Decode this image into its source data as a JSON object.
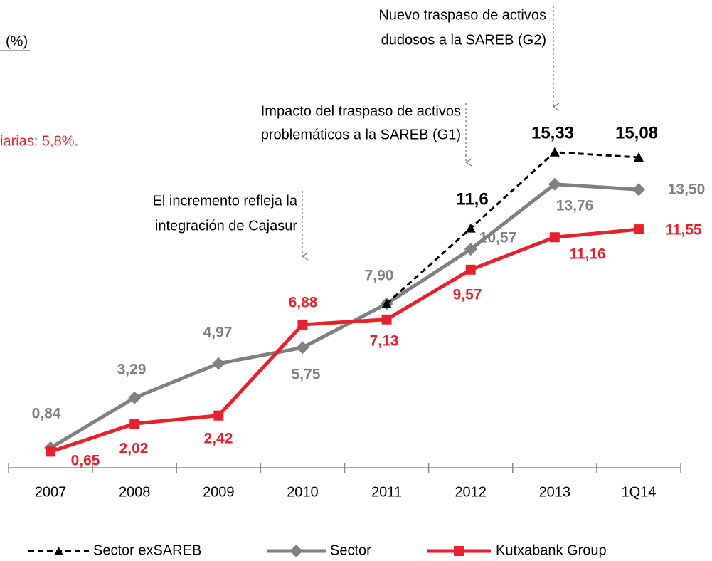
{
  "chart_data": {
    "type": "line",
    "header_fragments": [
      "(%)",
      "iarias: 5,8%."
    ],
    "categories": [
      "2007",
      "2008",
      "2009",
      "2010",
      "2011",
      "2012",
      "2013",
      "1Q14"
    ],
    "ylim": [
      0,
      20
    ],
    "series": [
      {
        "name": "Sector exSAREB",
        "color": "#000000",
        "dashed": true,
        "marker": "triangle",
        "values": [
          null,
          null,
          null,
          null,
          7.9,
          11.6,
          15.33,
          15.08
        ],
        "value_labels": [
          null,
          null,
          null,
          null,
          null,
          "11,6",
          "15,33",
          "15,08"
        ]
      },
      {
        "name": "Sector",
        "color": "#808080",
        "marker": "diamond",
        "values": [
          0.84,
          3.29,
          4.97,
          5.75,
          7.9,
          10.57,
          13.76,
          13.5
        ],
        "value_labels": [
          "0,84",
          "3,29",
          "4,97",
          "5,75",
          "7,90",
          "10,57",
          "13,76",
          "13,50"
        ]
      },
      {
        "name": "Kutxabank Group",
        "color": "#e8202a",
        "marker": "square",
        "values": [
          0.65,
          2.02,
          2.42,
          6.88,
          7.13,
          9.57,
          11.16,
          11.55
        ],
        "value_labels": [
          "0,65",
          "2,02",
          "2,42",
          "6,88",
          "7,13",
          "9,57",
          "11,16",
          "11,55"
        ]
      }
    ],
    "annotations": [
      {
        "lines": [
          "El incremento refleja la",
          "integración de Cajasur"
        ]
      },
      {
        "lines": [
          "Impacto del traspaso de activos",
          "problemáticos a la SAREB (G1)"
        ]
      },
      {
        "lines": [
          "Nuevo traspaso de activos",
          "dudosos a la SAREB (G2)"
        ]
      }
    ]
  }
}
